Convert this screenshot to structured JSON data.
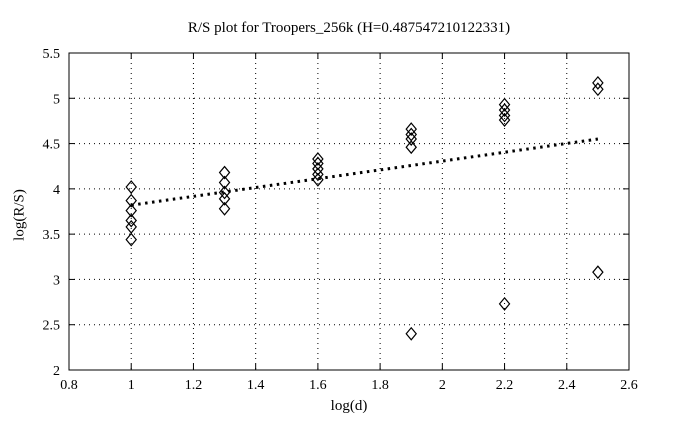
{
  "figure": {
    "title": "R/S plot for Troopers_256k (H=0.487547210122331)",
    "xlabel": "log(d)",
    "ylabel": "log(R/S)"
  },
  "chart_data": {
    "type": "scatter",
    "title": "R/S plot for Troopers_256k (H=0.487547210122331)",
    "hurst_exponent_shown_in_title": 0.487547210122331,
    "xlabel": "log(d)",
    "ylabel": "log(R/S)",
    "xlim": [
      0.8,
      2.6
    ],
    "ylim": [
      2,
      5.5
    ],
    "xticks": [
      0.8,
      1,
      1.2,
      1.4,
      1.6,
      1.8,
      2,
      2.2,
      2.4,
      2.6
    ],
    "xtick_labels": [
      "0.8",
      "1",
      "1.2",
      "1.4",
      "1.6",
      "1.8",
      "2",
      "2.2",
      "2.4",
      "2.6"
    ],
    "yticks": [
      2,
      2.5,
      3,
      3.5,
      4,
      4.5,
      5,
      5.5
    ],
    "ytick_labels": [
      "2",
      "2.5",
      "3",
      "3.5",
      "4",
      "4.5",
      "5",
      "5.5"
    ],
    "grid": true,
    "legend": "none",
    "marker": "open-diamond",
    "colors": {
      "foreground": "#000000",
      "background": "#ffffff"
    },
    "series": [
      {
        "name": "rs-estimates",
        "points": [
          [
            1.0,
            4.02
          ],
          [
            1.0,
            3.87
          ],
          [
            1.0,
            3.76
          ],
          [
            1.0,
            3.65
          ],
          [
            1.0,
            3.58
          ],
          [
            1.0,
            3.44
          ],
          [
            1.3,
            4.18
          ],
          [
            1.3,
            4.07
          ],
          [
            1.3,
            3.96
          ],
          [
            1.3,
            3.89
          ],
          [
            1.3,
            3.78
          ],
          [
            1.6,
            4.33
          ],
          [
            1.6,
            4.28
          ],
          [
            1.6,
            4.22
          ],
          [
            1.6,
            4.16
          ],
          [
            1.6,
            4.1
          ],
          [
            1.9,
            4.66
          ],
          [
            1.9,
            4.6
          ],
          [
            1.9,
            4.55
          ],
          [
            1.9,
            4.46
          ],
          [
            1.9,
            2.4
          ],
          [
            2.2,
            4.93
          ],
          [
            2.2,
            4.87
          ],
          [
            2.2,
            4.81
          ],
          [
            2.2,
            4.76
          ],
          [
            2.2,
            2.73
          ],
          [
            2.5,
            5.17
          ],
          [
            2.5,
            5.1
          ],
          [
            2.5,
            3.08
          ]
        ]
      }
    ],
    "trend_line": {
      "x1": 1.0,
      "y1": 3.82,
      "x2": 2.5,
      "y2": 4.55,
      "style": "bold-dotted"
    }
  }
}
